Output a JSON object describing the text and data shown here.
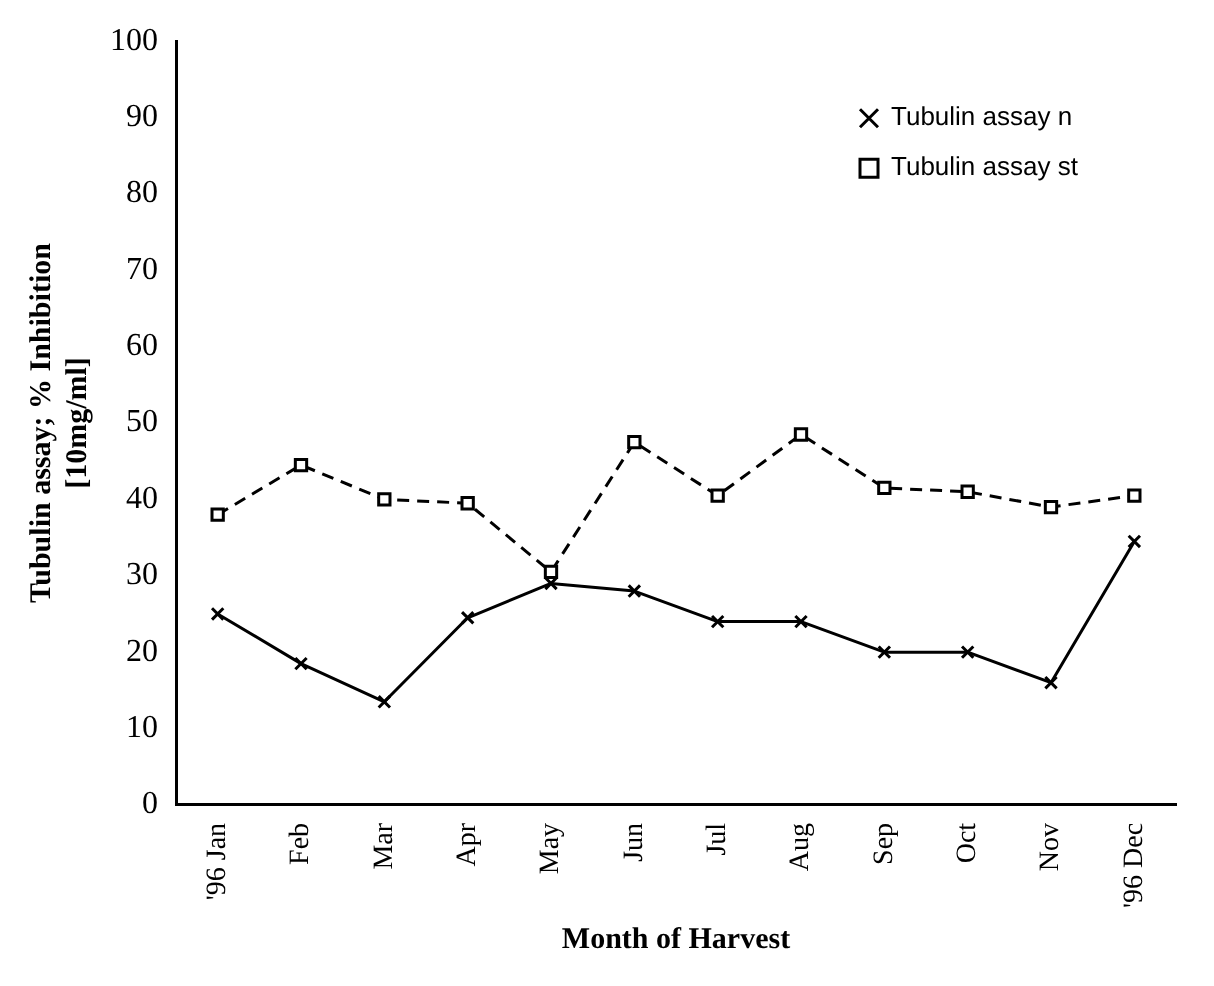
{
  "chart_data": {
    "type": "line",
    "xlabel": "Month of Harvest",
    "ylabel": "Tubulin assay; % Inhibition\n[10mg/ml]",
    "categories": [
      "'96 Jan",
      "Feb",
      "Mar",
      "Apr",
      "May",
      "Jun",
      "Jul",
      "Aug",
      "Sep",
      "Oct",
      "Nov",
      "'96 Dec"
    ],
    "series": [
      {
        "name": "Tubulin assay n",
        "color": "#000000",
        "marker": "cross",
        "line_style": "solid",
        "values": [
          25,
          18.5,
          13.5,
          24.5,
          29,
          28,
          24,
          24,
          20,
          20,
          16,
          34.5
        ]
      },
      {
        "name": "Tubulin assay st",
        "color": "#000000",
        "marker": "square",
        "line_style": "dashed",
        "values": [
          38,
          44.5,
          40,
          39.5,
          30.5,
          47.5,
          40.5,
          48.5,
          41.5,
          41,
          39,
          40.5
        ]
      }
    ],
    "ylim": [
      0,
      100
    ],
    "yticks": [
      0,
      10,
      20,
      30,
      40,
      50,
      60,
      70,
      80,
      90,
      100
    ],
    "grid": false,
    "legend": "top right"
  }
}
